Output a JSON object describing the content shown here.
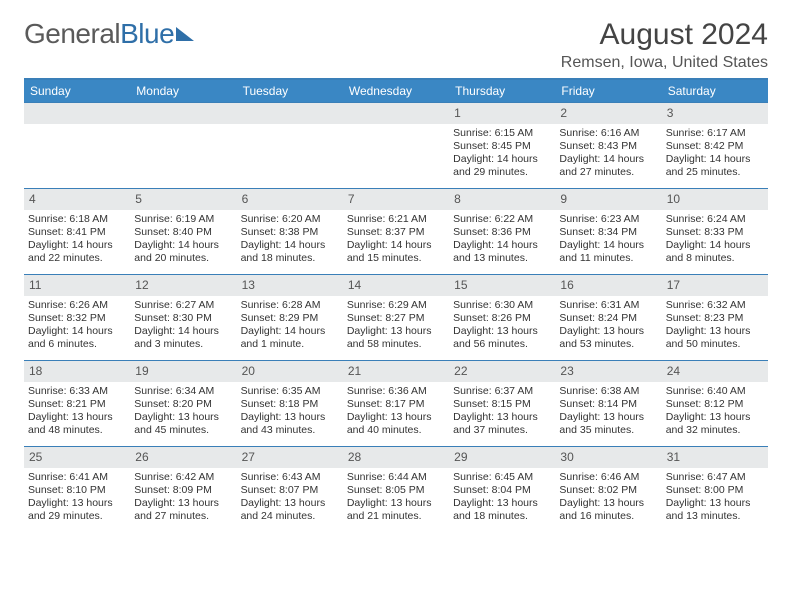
{
  "logo": {
    "part1": "General",
    "part2": "Blue"
  },
  "title": "August 2024",
  "location": "Remsen, Iowa, United States",
  "colors": {
    "header_bg": "#3a87c4",
    "header_text": "#ffffff",
    "rule": "#3a7fb8",
    "daynum_bg": "#e7e9ea",
    "text": "#333333",
    "logo_gray": "#5a5a5a",
    "logo_blue": "#2f6fa8"
  },
  "weekdays": [
    "Sunday",
    "Monday",
    "Tuesday",
    "Wednesday",
    "Thursday",
    "Friday",
    "Saturday"
  ],
  "first_weekday_index": 4,
  "days": [
    {
      "n": 1,
      "sunrise": "6:15 AM",
      "sunset": "8:45 PM",
      "daylight": "14 hours and 29 minutes."
    },
    {
      "n": 2,
      "sunrise": "6:16 AM",
      "sunset": "8:43 PM",
      "daylight": "14 hours and 27 minutes."
    },
    {
      "n": 3,
      "sunrise": "6:17 AM",
      "sunset": "8:42 PM",
      "daylight": "14 hours and 25 minutes."
    },
    {
      "n": 4,
      "sunrise": "6:18 AM",
      "sunset": "8:41 PM",
      "daylight": "14 hours and 22 minutes."
    },
    {
      "n": 5,
      "sunrise": "6:19 AM",
      "sunset": "8:40 PM",
      "daylight": "14 hours and 20 minutes."
    },
    {
      "n": 6,
      "sunrise": "6:20 AM",
      "sunset": "8:38 PM",
      "daylight": "14 hours and 18 minutes."
    },
    {
      "n": 7,
      "sunrise": "6:21 AM",
      "sunset": "8:37 PM",
      "daylight": "14 hours and 15 minutes."
    },
    {
      "n": 8,
      "sunrise": "6:22 AM",
      "sunset": "8:36 PM",
      "daylight": "14 hours and 13 minutes."
    },
    {
      "n": 9,
      "sunrise": "6:23 AM",
      "sunset": "8:34 PM",
      "daylight": "14 hours and 11 minutes."
    },
    {
      "n": 10,
      "sunrise": "6:24 AM",
      "sunset": "8:33 PM",
      "daylight": "14 hours and 8 minutes."
    },
    {
      "n": 11,
      "sunrise": "6:26 AM",
      "sunset": "8:32 PM",
      "daylight": "14 hours and 6 minutes."
    },
    {
      "n": 12,
      "sunrise": "6:27 AM",
      "sunset": "8:30 PM",
      "daylight": "14 hours and 3 minutes."
    },
    {
      "n": 13,
      "sunrise": "6:28 AM",
      "sunset": "8:29 PM",
      "daylight": "14 hours and 1 minute."
    },
    {
      "n": 14,
      "sunrise": "6:29 AM",
      "sunset": "8:27 PM",
      "daylight": "13 hours and 58 minutes."
    },
    {
      "n": 15,
      "sunrise": "6:30 AM",
      "sunset": "8:26 PM",
      "daylight": "13 hours and 56 minutes."
    },
    {
      "n": 16,
      "sunrise": "6:31 AM",
      "sunset": "8:24 PM",
      "daylight": "13 hours and 53 minutes."
    },
    {
      "n": 17,
      "sunrise": "6:32 AM",
      "sunset": "8:23 PM",
      "daylight": "13 hours and 50 minutes."
    },
    {
      "n": 18,
      "sunrise": "6:33 AM",
      "sunset": "8:21 PM",
      "daylight": "13 hours and 48 minutes."
    },
    {
      "n": 19,
      "sunrise": "6:34 AM",
      "sunset": "8:20 PM",
      "daylight": "13 hours and 45 minutes."
    },
    {
      "n": 20,
      "sunrise": "6:35 AM",
      "sunset": "8:18 PM",
      "daylight": "13 hours and 43 minutes."
    },
    {
      "n": 21,
      "sunrise": "6:36 AM",
      "sunset": "8:17 PM",
      "daylight": "13 hours and 40 minutes."
    },
    {
      "n": 22,
      "sunrise": "6:37 AM",
      "sunset": "8:15 PM",
      "daylight": "13 hours and 37 minutes."
    },
    {
      "n": 23,
      "sunrise": "6:38 AM",
      "sunset": "8:14 PM",
      "daylight": "13 hours and 35 minutes."
    },
    {
      "n": 24,
      "sunrise": "6:40 AM",
      "sunset": "8:12 PM",
      "daylight": "13 hours and 32 minutes."
    },
    {
      "n": 25,
      "sunrise": "6:41 AM",
      "sunset": "8:10 PM",
      "daylight": "13 hours and 29 minutes."
    },
    {
      "n": 26,
      "sunrise": "6:42 AM",
      "sunset": "8:09 PM",
      "daylight": "13 hours and 27 minutes."
    },
    {
      "n": 27,
      "sunrise": "6:43 AM",
      "sunset": "8:07 PM",
      "daylight": "13 hours and 24 minutes."
    },
    {
      "n": 28,
      "sunrise": "6:44 AM",
      "sunset": "8:05 PM",
      "daylight": "13 hours and 21 minutes."
    },
    {
      "n": 29,
      "sunrise": "6:45 AM",
      "sunset": "8:04 PM",
      "daylight": "13 hours and 18 minutes."
    },
    {
      "n": 30,
      "sunrise": "6:46 AM",
      "sunset": "8:02 PM",
      "daylight": "13 hours and 16 minutes."
    },
    {
      "n": 31,
      "sunrise": "6:47 AM",
      "sunset": "8:00 PM",
      "daylight": "13 hours and 13 minutes."
    }
  ],
  "labels": {
    "sunrise_prefix": "Sunrise: ",
    "sunset_prefix": "Sunset: ",
    "daylight_prefix": "Daylight: "
  }
}
